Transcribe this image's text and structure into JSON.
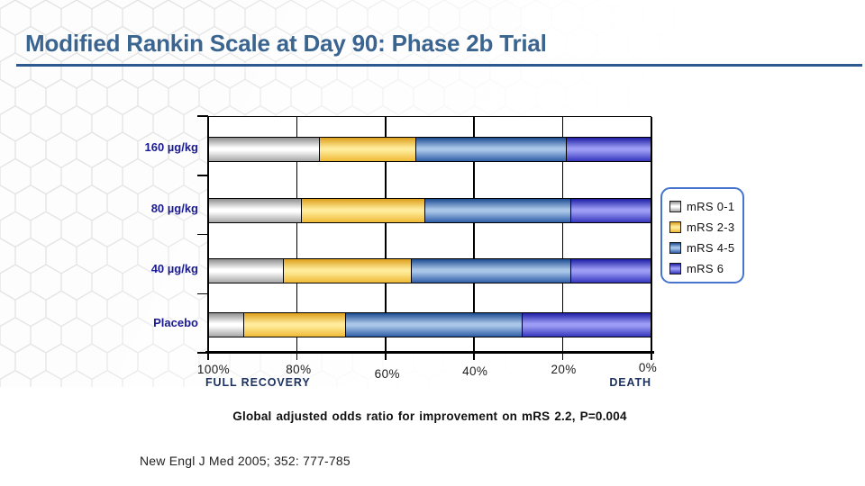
{
  "slide": {
    "title": "Modified Rankin Scale at Day 90: Phase 2b Trial"
  },
  "caption": "Global adjusted odds ratio for improvement on mRS 2.2, P=0.004",
  "source": "New Engl J Med 2005; 352: 777-785",
  "colors": {
    "title": "#3B6591",
    "title_rule": "#2D5A8E",
    "category_label": "#1B1B91",
    "axis_emphasis_label": "#1E3260",
    "legend_border": "#4575CE",
    "gridline": "#000000"
  },
  "chart_data": {
    "type": "bar",
    "orientation": "horizontal-stacked",
    "categories": [
      "160 µg/kg",
      "80 µg/kg",
      "40 µg/kg",
      "Placebo"
    ],
    "series": [
      {
        "name": "mRS 0-1",
        "values": [
          25,
          21,
          17,
          8
        ],
        "color_top": "#8E8E8E",
        "color_mid": "#FFFFFF",
        "color_bottom": "#A6A6A6"
      },
      {
        "name": "mRS 2-3",
        "values": [
          22,
          28,
          29,
          23
        ],
        "color_top": "#DD9F1B",
        "color_mid": "#FFEB9A",
        "color_bottom": "#EFBA35"
      },
      {
        "name": "mRS 4-5",
        "values": [
          34,
          33,
          36,
          40
        ],
        "color_top": "#1C4B91",
        "color_mid": "#A9C6E8",
        "color_bottom": "#2E5DA8"
      },
      {
        "name": "mRS 6",
        "values": [
          19,
          18,
          18,
          29
        ],
        "color_top": "#1E1EA6",
        "color_mid": "#9C9CF4",
        "color_bottom": "#3636BE"
      }
    ],
    "x_ticks": [
      "100%",
      "80%",
      "60%",
      "40%",
      "20%",
      "0%"
    ],
    "xlim": [
      100,
      0
    ],
    "axis_reversed": true,
    "x_axis_left_label": "FULL RECOVERY",
    "x_axis_right_label": "DEATH",
    "legend_position": "right",
    "grid": true,
    "units": "percent of patients"
  }
}
